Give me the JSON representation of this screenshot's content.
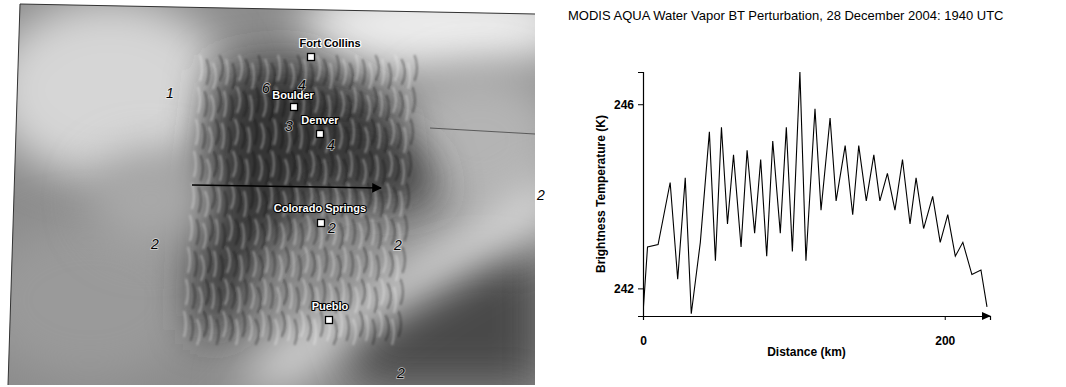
{
  "chart_data": {
    "type": "line",
    "title": "MODIS AQUA Water Vapor BT Perturbation, 28 December 2004: 1940 UTC",
    "x_label": "Distance (km)",
    "y_label": "Brightness Temperature (K)",
    "x": [
      0,
      3,
      10,
      18,
      23,
      28,
      32,
      38,
      44,
      48,
      52,
      56,
      60,
      65,
      69,
      74,
      78,
      82,
      86,
      91,
      95,
      99,
      104,
      108,
      114,
      118,
      124,
      128,
      134,
      139,
      143,
      148,
      153,
      157,
      162,
      167,
      172,
      177,
      181,
      186,
      192,
      197,
      202,
      207,
      212,
      218,
      224,
      228
    ],
    "series": [
      {
        "color": "#000000",
        "values": [
          241.45,
          242.9,
          242.95,
          244.3,
          242.2,
          244.4,
          241.45,
          243.0,
          245.4,
          242.6,
          245.5,
          243.4,
          244.9,
          242.9,
          245.0,
          243.2,
          244.8,
          242.7,
          245.2,
          243.2,
          245.5,
          242.8,
          246.7,
          242.6,
          245.9,
          243.7,
          245.7,
          243.9,
          245.1,
          243.6,
          245.1,
          243.9,
          244.9,
          243.9,
          244.5,
          243.7,
          244.8,
          243.4,
          244.4,
          243.3,
          244.0,
          243.0,
          243.6,
          242.7,
          243.0,
          242.3,
          242.4,
          241.6
        ]
      }
    ],
    "xlim": [
      0,
      230
    ],
    "ylim": [
      241.4,
      246.7
    ],
    "xticks": [
      0,
      200
    ],
    "yticks": [
      242,
      246
    ],
    "grid": false
  },
  "satellite_image": {
    "cities": [
      "Fort Collins",
      "Boulder",
      "Denver",
      "Colorado Springs",
      "Pueblo"
    ],
    "region_labels": [
      "1",
      "6",
      "4",
      "3",
      "4",
      "2",
      "2",
      "2",
      "2",
      "2"
    ]
  }
}
